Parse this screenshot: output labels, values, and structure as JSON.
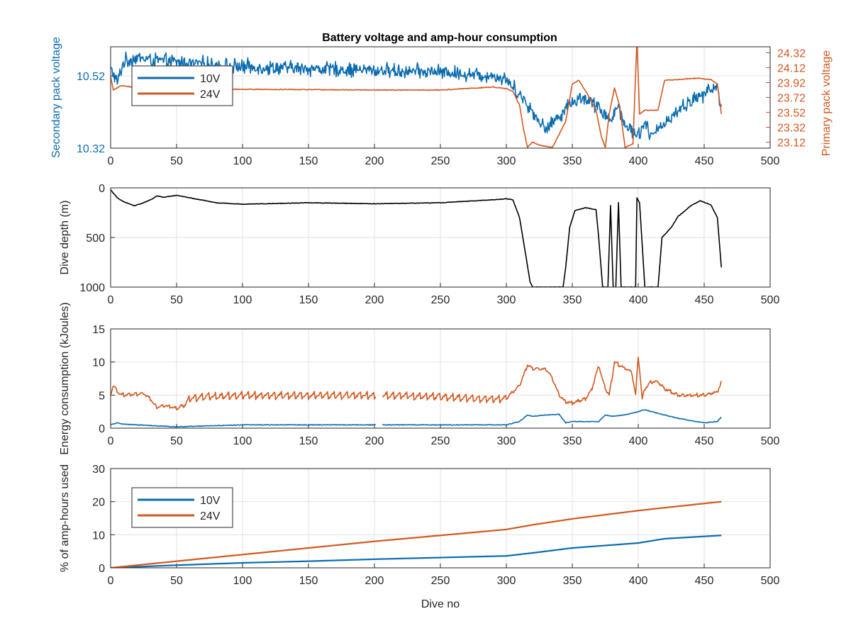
{
  "title": "Battery voltage and amp-hour consumption",
  "colors": {
    "blue": "#0b6cb0",
    "orange": "#d2581e",
    "black": "#000000",
    "grid": "#e2e2e2",
    "axis": "#262626"
  },
  "chart_data": [
    {
      "id": "voltage",
      "type": "line",
      "title": "Battery voltage and amp-hour consumption",
      "xlabel": "",
      "ylabel": "Secondary pack voltage",
      "ylabel_right": "Primary pack voltage",
      "xlim": [
        0,
        500
      ],
      "ylim": [
        10.32,
        10.6
      ],
      "ylim_right": [
        23.04,
        24.4
      ],
      "xticks": [
        "0",
        "50",
        "100",
        "150",
        "200",
        "250",
        "300",
        "350",
        "400",
        "450",
        "500"
      ],
      "yticks": [
        "10.32",
        "10.52"
      ],
      "yticks_right": [
        "23.12",
        "23.32",
        "23.52",
        "23.72",
        "23.92",
        "24.12",
        "24.32"
      ],
      "grid": true,
      "legend": {
        "position": "top-left",
        "entries": [
          "10V",
          "24V"
        ]
      },
      "series": [
        {
          "name": "10V",
          "axis": "left",
          "color": "#0b6cb0",
          "style": "noisy",
          "noise": 0.018,
          "points": [
            [
              0,
              10.54
            ],
            [
              5,
              10.5
            ],
            [
              10,
              10.56
            ],
            [
              20,
              10.57
            ],
            [
              40,
              10.56
            ],
            [
              60,
              10.555
            ],
            [
              80,
              10.55
            ],
            [
              100,
              10.545
            ],
            [
              150,
              10.54
            ],
            [
              200,
              10.535
            ],
            [
              250,
              10.53
            ],
            [
              290,
              10.52
            ],
            [
              300,
              10.51
            ],
            [
              310,
              10.47
            ],
            [
              320,
              10.42
            ],
            [
              330,
              10.37
            ],
            [
              340,
              10.41
            ],
            [
              350,
              10.45
            ],
            [
              360,
              10.46
            ],
            [
              370,
              10.43
            ],
            [
              380,
              10.4
            ],
            [
              385,
              10.44
            ],
            [
              390,
              10.38
            ],
            [
              400,
              10.36
            ],
            [
              405,
              10.39
            ],
            [
              410,
              10.35
            ],
            [
              415,
              10.37
            ],
            [
              425,
              10.41
            ],
            [
              440,
              10.45
            ],
            [
              450,
              10.47
            ],
            [
              460,
              10.49
            ],
            [
              463,
              10.42
            ]
          ]
        },
        {
          "name": "24V",
          "axis": "right",
          "color": "#d2581e",
          "style": "smooth",
          "noise": 0.01,
          "points": [
            [
              0,
              24.0
            ],
            [
              2,
              23.82
            ],
            [
              8,
              23.88
            ],
            [
              20,
              23.85
            ],
            [
              50,
              23.84
            ],
            [
              100,
              23.83
            ],
            [
              200,
              23.82
            ],
            [
              250,
              23.82
            ],
            [
              290,
              23.86
            ],
            [
              300,
              23.84
            ],
            [
              305,
              23.8
            ],
            [
              310,
              23.62
            ],
            [
              313,
              23.3
            ],
            [
              316,
              23.05
            ],
            [
              320,
              23.12
            ],
            [
              325,
              23.08
            ],
            [
              335,
              23.05
            ],
            [
              345,
              23.4
            ],
            [
              350,
              23.9
            ],
            [
              355,
              23.95
            ],
            [
              362,
              23.75
            ],
            [
              368,
              23.55
            ],
            [
              372,
              23.2
            ],
            [
              375,
              23.05
            ],
            [
              378,
              23.5
            ],
            [
              382,
              23.85
            ],
            [
              386,
              23.6
            ],
            [
              390,
              23.05
            ],
            [
              396,
              23.1
            ],
            [
              399,
              24.5
            ],
            [
              401,
              23.5
            ],
            [
              405,
              23.55
            ],
            [
              415,
              23.55
            ],
            [
              420,
              23.95
            ],
            [
              430,
              23.96
            ],
            [
              445,
              23.98
            ],
            [
              455,
              23.96
            ],
            [
              460,
              23.9
            ],
            [
              463,
              23.5
            ]
          ]
        }
      ]
    },
    {
      "id": "depth",
      "type": "line",
      "title": "",
      "xlabel": "",
      "ylabel": "Dive depth (m)",
      "xlim": [
        0,
        500
      ],
      "ylim": [
        0,
        1000
      ],
      "y_reversed": true,
      "xticks": [
        "0",
        "50",
        "100",
        "150",
        "200",
        "250",
        "300",
        "350",
        "400",
        "450",
        "500"
      ],
      "yticks": [
        "0",
        "500",
        "1000"
      ],
      "grid": true,
      "series": [
        {
          "color": "#000000",
          "style": "smooth",
          "noise": 5,
          "points": [
            [
              0,
              20
            ],
            [
              5,
              100
            ],
            [
              10,
              140
            ],
            [
              18,
              180
            ],
            [
              25,
              150
            ],
            [
              32,
              110
            ],
            [
              35,
              80
            ],
            [
              40,
              95
            ],
            [
              50,
              75
            ],
            [
              60,
              100
            ],
            [
              80,
              150
            ],
            [
              100,
              165
            ],
            [
              150,
              150
            ],
            [
              200,
              160
            ],
            [
              250,
              150
            ],
            [
              290,
              120
            ],
            [
              300,
              110
            ],
            [
              305,
              120
            ],
            [
              310,
              300
            ],
            [
              315,
              700
            ],
            [
              318,
              950
            ],
            [
              320,
              1000
            ],
            [
              343,
              1000
            ],
            [
              345,
              800
            ],
            [
              348,
              400
            ],
            [
              352,
              230
            ],
            [
              360,
              200
            ],
            [
              368,
              220
            ],
            [
              370,
              500
            ],
            [
              373,
              1000
            ],
            [
              377,
              1000
            ],
            [
              379,
              180
            ],
            [
              381,
              1000
            ],
            [
              383,
              1000
            ],
            [
              385,
              150
            ],
            [
              387,
              1000
            ],
            [
              398,
              1000
            ],
            [
              399,
              100
            ],
            [
              401,
              150
            ],
            [
              405,
              1000
            ],
            [
              415,
              1000
            ],
            [
              418,
              500
            ],
            [
              425,
              400
            ],
            [
              430,
              290
            ],
            [
              440,
              180
            ],
            [
              447,
              130
            ],
            [
              455,
              170
            ],
            [
              460,
              300
            ],
            [
              463,
              800
            ]
          ]
        }
      ]
    },
    {
      "id": "energy",
      "type": "line",
      "title": "",
      "xlabel": "",
      "ylabel": "Energy consumption (kJoules)",
      "xlim": [
        0,
        500
      ],
      "ylim": [
        0,
        15
      ],
      "xticks": [
        "0",
        "50",
        "100",
        "150",
        "200",
        "250",
        "300",
        "350",
        "400",
        "450",
        "500"
      ],
      "yticks": [
        "0",
        "5",
        "10",
        "15"
      ],
      "grid": true,
      "series": [
        {
          "name": "24V",
          "color": "#d2581e",
          "style": "sawtooth",
          "noise": 0.3,
          "amplitude": 1.1,
          "gaps": [
            [
              201,
              206
            ]
          ],
          "points": [
            [
              0,
              5.0
            ],
            [
              2,
              6.5
            ],
            [
              5,
              5.5
            ],
            [
              10,
              5.0
            ],
            [
              25,
              5.2
            ],
            [
              30,
              4.5
            ],
            [
              35,
              3.2
            ],
            [
              40,
              3.5
            ],
            [
              50,
              3.0
            ],
            [
              55,
              3.5
            ],
            [
              60,
              4.5
            ],
            [
              70,
              4.8
            ],
            [
              100,
              5.0
            ],
            [
              150,
              5.0
            ],
            [
              200,
              5.0
            ],
            [
              206,
              5.0
            ],
            [
              250,
              4.8
            ],
            [
              280,
              4.5
            ],
            [
              300,
              4.5
            ],
            [
              305,
              5.5
            ],
            [
              310,
              6.5
            ],
            [
              313,
              8.0
            ],
            [
              316,
              9.5
            ],
            [
              320,
              9.0
            ],
            [
              330,
              9.0
            ],
            [
              335,
              7.5
            ],
            [
              340,
              5.0
            ],
            [
              345,
              4.0
            ],
            [
              350,
              3.8
            ],
            [
              360,
              4.5
            ],
            [
              365,
              6.0
            ],
            [
              370,
              9.5
            ],
            [
              372,
              8.0
            ],
            [
              375,
              6.0
            ],
            [
              378,
              5.0
            ],
            [
              382,
              10.0
            ],
            [
              390,
              9.0
            ],
            [
              395,
              8.5
            ],
            [
              398,
              5.0
            ],
            [
              400,
              11.0
            ],
            [
              403,
              4.5
            ],
            [
              405,
              6.0
            ],
            [
              410,
              7.0
            ],
            [
              415,
              7.0
            ],
            [
              420,
              6.0
            ],
            [
              430,
              5.0
            ],
            [
              450,
              5.0
            ],
            [
              460,
              5.5
            ],
            [
              463,
              7.0
            ]
          ]
        },
        {
          "name": "10V",
          "color": "#0b6cb0",
          "style": "smooth",
          "noise": 0.1,
          "gaps": [
            [
              201,
              206
            ]
          ],
          "points": [
            [
              0,
              0.5
            ],
            [
              5,
              0.8
            ],
            [
              10,
              0.6
            ],
            [
              40,
              0.3
            ],
            [
              50,
              0.2
            ],
            [
              100,
              0.5
            ],
            [
              150,
              0.5
            ],
            [
              200,
              0.5
            ],
            [
              206,
              0.5
            ],
            [
              250,
              0.5
            ],
            [
              300,
              0.5
            ],
            [
              310,
              1.0
            ],
            [
              316,
              2.0
            ],
            [
              320,
              1.8
            ],
            [
              330,
              2.0
            ],
            [
              340,
              2.1
            ],
            [
              345,
              0.8
            ],
            [
              350,
              1.0
            ],
            [
              360,
              1.0
            ],
            [
              370,
              1.0
            ],
            [
              375,
              2.0
            ],
            [
              380,
              1.8
            ],
            [
              390,
              2.0
            ],
            [
              400,
              2.5
            ],
            [
              405,
              2.8
            ],
            [
              410,
              2.5
            ],
            [
              420,
              2.0
            ],
            [
              430,
              1.5
            ],
            [
              450,
              0.8
            ],
            [
              460,
              1.0
            ],
            [
              463,
              1.7
            ]
          ]
        }
      ]
    },
    {
      "id": "amphours",
      "type": "line",
      "title": "",
      "xlabel": "Dive no",
      "ylabel": "% of amp-hours used",
      "xlim": [
        0,
        500
      ],
      "ylim": [
        0,
        30
      ],
      "xticks": [
        "0",
        "50",
        "100",
        "150",
        "200",
        "250",
        "300",
        "350",
        "400",
        "450",
        "500"
      ],
      "yticks": [
        "0",
        "10",
        "20",
        "30"
      ],
      "grid": true,
      "legend": {
        "position": "top-left",
        "entries": [
          "10V",
          "24V"
        ]
      },
      "series": [
        {
          "name": "10V",
          "color": "#0b6cb0",
          "style": "smooth",
          "noise": 0,
          "points": [
            [
              0,
              0
            ],
            [
              50,
              0.8
            ],
            [
              100,
              1.5
            ],
            [
              150,
              2.0
            ],
            [
              200,
              2.6
            ],
            [
              250,
              3.1
            ],
            [
              300,
              3.6
            ],
            [
              320,
              4.5
            ],
            [
              350,
              6.0
            ],
            [
              400,
              7.5
            ],
            [
              420,
              8.8
            ],
            [
              463,
              9.8
            ]
          ]
        },
        {
          "name": "24V",
          "color": "#d2581e",
          "style": "smooth",
          "noise": 0,
          "points": [
            [
              0,
              0
            ],
            [
              50,
              2.0
            ],
            [
              100,
              4.0
            ],
            [
              150,
              6.0
            ],
            [
              200,
              8.0
            ],
            [
              250,
              9.8
            ],
            [
              300,
              11.6
            ],
            [
              320,
              13.0
            ],
            [
              350,
              14.8
            ],
            [
              400,
              17.3
            ],
            [
              430,
              18.6
            ],
            [
              463,
              20.0
            ]
          ]
        }
      ]
    }
  ]
}
